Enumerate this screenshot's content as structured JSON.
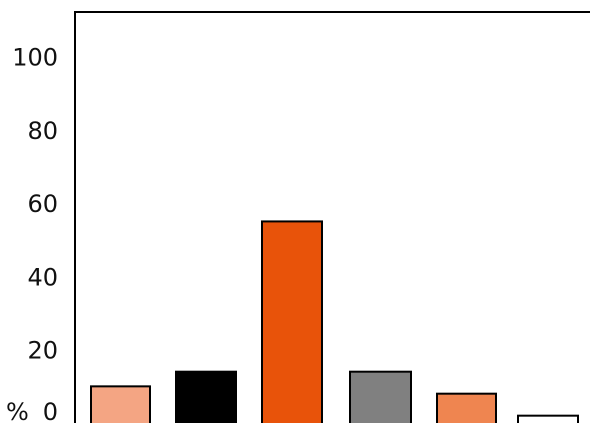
{
  "chart_data": {
    "type": "bar",
    "categories": [
      "",
      "",
      "",
      "",
      "",
      ""
    ],
    "values": [
      10,
      14,
      55,
      14,
      8,
      2
    ],
    "colors": [
      "#f4a583",
      "#000000",
      "#e8530a",
      "#808080",
      "#ef8550",
      "#ffffff"
    ],
    "title": "",
    "xlabel": "",
    "ylabel": "",
    "y_unit_label": "%",
    "ylim": [
      0,
      104
    ],
    "yticks": [
      0,
      20,
      40,
      60,
      80,
      100
    ],
    "grid": false,
    "legend": "none"
  }
}
